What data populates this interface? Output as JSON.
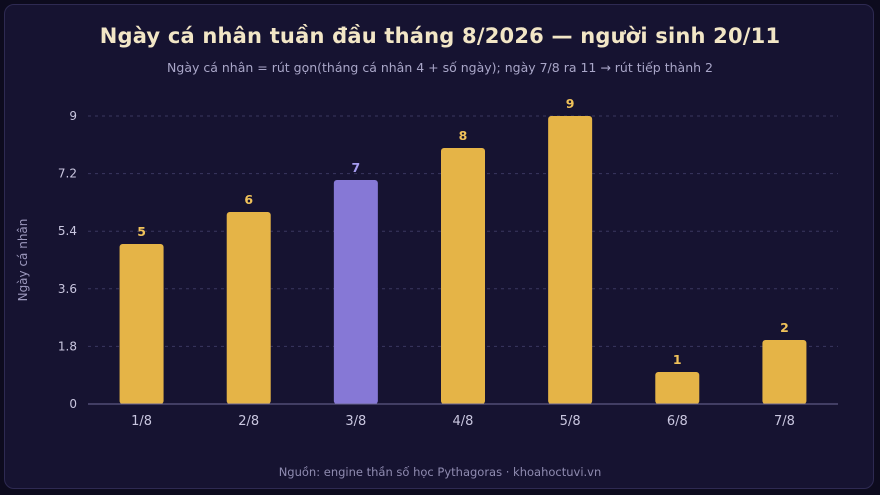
{
  "colors": {
    "background": "#0d0b1e",
    "card": "#161331",
    "bar_default": "#e5b447",
    "bar_highlight": "#8678d6",
    "label_default": "#f0c25a",
    "label_highlight": "#a69cf0",
    "grid": "#3a3760",
    "axis_text": "#c9c6df",
    "ylabel_text": "#9c98bd"
  },
  "chart_data": {
    "type": "bar",
    "title": "Ngày cá nhân tuần đầu tháng 8/2026 — người sinh 20/11",
    "subtitle": "Ngày cá nhân = rút gọn(tháng cá nhân 4 + số ngày); ngày 7/8 ra 11 → rút tiếp thành 2",
    "xlabel": "",
    "ylabel": "Ngày cá nhân",
    "categories": [
      "1/8",
      "2/8",
      "3/8",
      "4/8",
      "5/8",
      "6/8",
      "7/8"
    ],
    "values": [
      5,
      6,
      7,
      8,
      9,
      1,
      2
    ],
    "highlight_index": 2,
    "ylim": [
      0,
      9
    ],
    "yticks": [
      0,
      1.8,
      3.6,
      5.4,
      7.2,
      9
    ],
    "ytick_labels": [
      "0",
      "1.8",
      "3.6",
      "5.4",
      "7.2",
      "9"
    ],
    "grid": "horizontal dashed",
    "legend": "none",
    "source": "Nguồn: engine thần số học Pythagoras · khoahoctuvi.vn"
  }
}
